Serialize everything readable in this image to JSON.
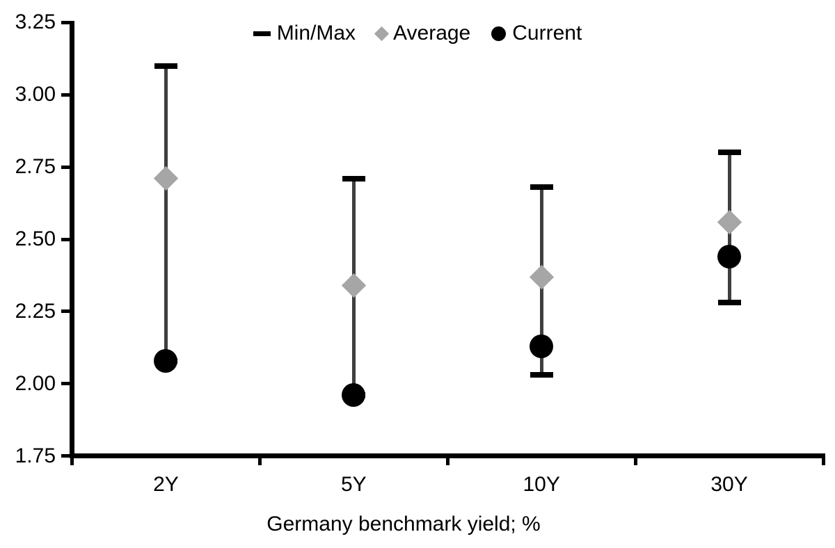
{
  "legend": {
    "items": [
      {
        "label": "Min/Max",
        "marker": "dash"
      },
      {
        "label": "Average",
        "marker": "diamond"
      },
      {
        "label": "Current",
        "marker": "circle"
      }
    ]
  },
  "chart_data": {
    "type": "scatter",
    "subtype": "min-max-range-with-average-and-current-markers",
    "title": "",
    "xlabel": "Germany benchmark yield; %",
    "ylabel": "",
    "categories": [
      "2Y",
      "5Y",
      "10Y",
      "30Y"
    ],
    "series": [
      {
        "name": "Min/Max",
        "min": [
          2.08,
          1.96,
          2.03,
          2.28
        ],
        "max": [
          3.1,
          2.71,
          2.68,
          2.8
        ]
      },
      {
        "name": "Average",
        "values": [
          2.71,
          2.34,
          2.37,
          2.56
        ]
      },
      {
        "name": "Current",
        "values": [
          2.08,
          1.96,
          2.13,
          2.44
        ]
      }
    ],
    "ylim": [
      1.75,
      3.25
    ],
    "ytick_step": 0.25,
    "ytick_labels": [
      "3.25",
      "3.00",
      "2.75",
      "2.50",
      "2.25",
      "2.00",
      "1.75"
    ],
    "grid": false,
    "legend_position": "top-center",
    "colors": {
      "range_line": "#3f3f3f",
      "minmax_cap": "#000000",
      "average": "#a6a6a6",
      "current": "#000000",
      "axis": "#000000",
      "text": "#000000"
    }
  }
}
